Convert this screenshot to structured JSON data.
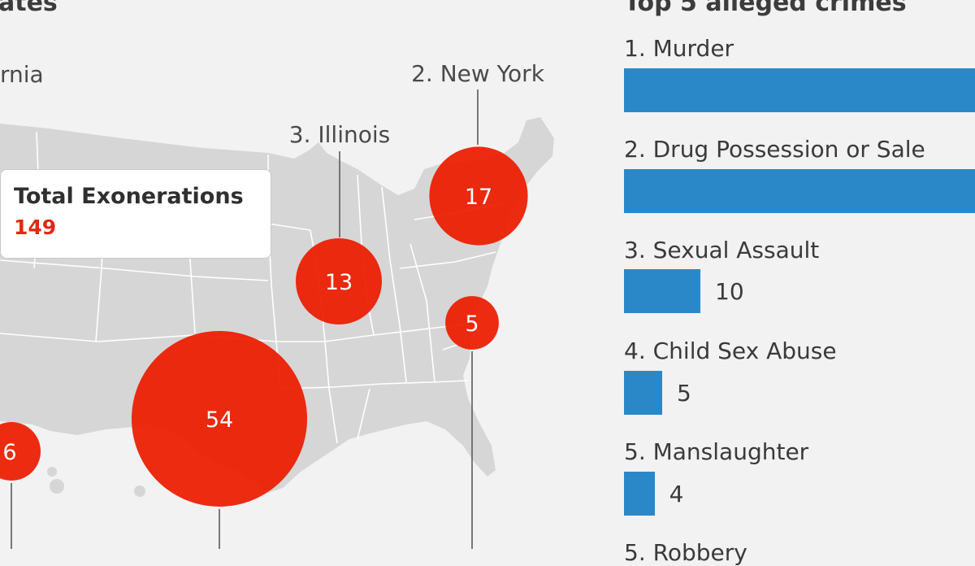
{
  "map": {
    "heading": "ates",
    "states": [
      {
        "label": "rnia",
        "value": null
      },
      {
        "label": "2. New York",
        "value": 17
      },
      {
        "label": "3. Illinois",
        "value": 13
      },
      {
        "label": "",
        "value": 54
      },
      {
        "label": "",
        "value": 5
      },
      {
        "label": "",
        "value": 6
      }
    ],
    "total": {
      "title": "Total Exonerations",
      "value": "149"
    }
  },
  "crimes": {
    "heading": "Top 5 alleged crimes",
    "items": [
      {
        "label": "1. Murder",
        "value": null
      },
      {
        "label": "2. Drug Possession or Sale",
        "value": null
      },
      {
        "label": "3. Sexual Assault",
        "value": 10
      },
      {
        "label": "4. Child Sex Abuse",
        "value": 5
      },
      {
        "label": "5. Manslaughter",
        "value": 4
      },
      {
        "label": "5. Robbery",
        "value": null
      }
    ]
  },
  "colors": {
    "bubble": "#ec1c00",
    "bar": "#2b88c8",
    "total_value": "#e02a12"
  },
  "chart_data": [
    {
      "type": "scatter",
      "title": "",
      "series": [
        {
          "name": "",
          "points": [
            {
              "label": "2. New York",
              "value": 17
            },
            {
              "label": "3. Illinois",
              "value": 13
            },
            {
              "label": "",
              "value": 54
            },
            {
              "label": "",
              "value": 5
            },
            {
              "label": "",
              "value": 6
            }
          ]
        }
      ]
    },
    {
      "type": "bar",
      "title": "Top 5 alleged crimes",
      "categories": [
        "1. Murder",
        "2. Drug Possession or Sale",
        "3. Sexual Assault",
        "4. Child Sex Abuse",
        "5. Manslaughter"
      ],
      "values": [
        null,
        null,
        10,
        5,
        4
      ]
    }
  ]
}
